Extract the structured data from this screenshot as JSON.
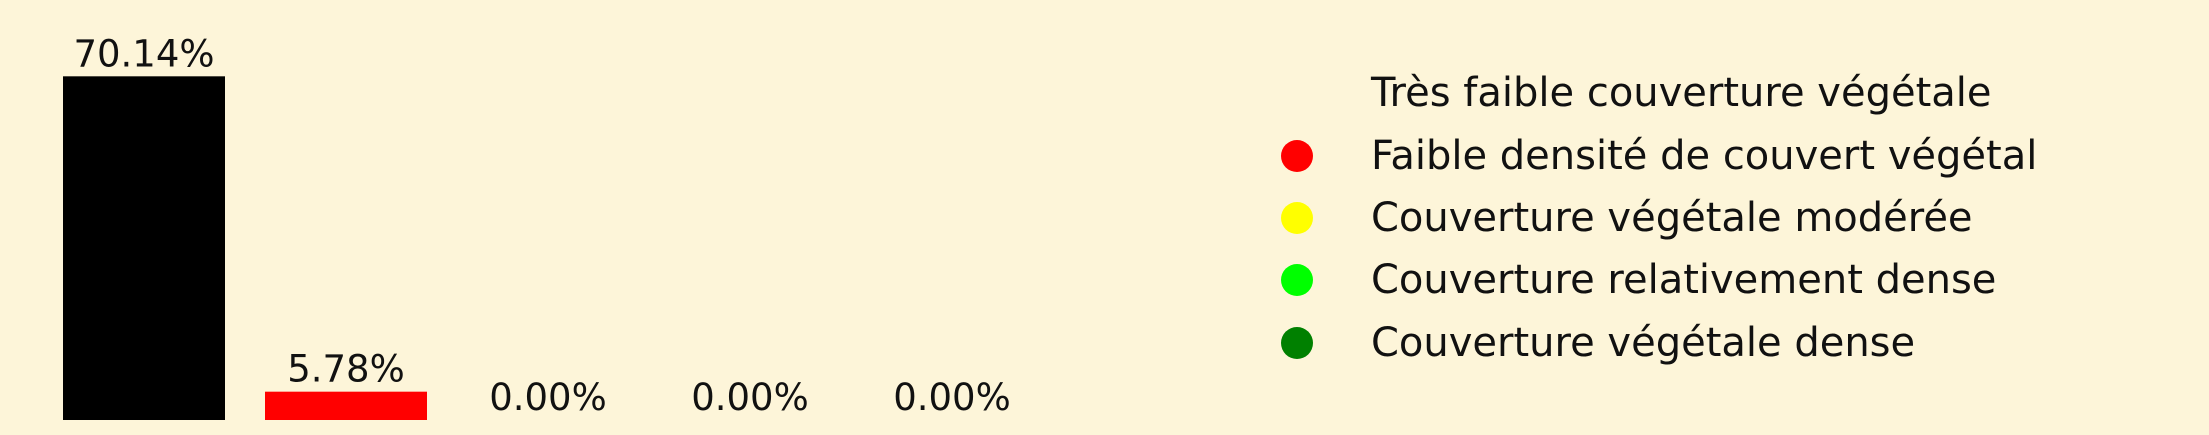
{
  "chart_data": {
    "type": "bar",
    "categories": [
      "Très faible couverture végétale",
      "Faible densité de couvert végétal",
      "Couverture végétale modérée",
      "Couverture relativement dense",
      "Couverture végétale dense"
    ],
    "values": [
      70.14,
      5.78,
      0.0,
      0.0,
      0.0
    ],
    "value_labels": [
      "70.14%",
      "5.78%",
      "0.00%",
      "0.00%",
      "0.00%"
    ],
    "colors": [
      "#000000",
      "#ff0000",
      "#ffff00",
      "#00ff00",
      "#008000"
    ],
    "ylim": [
      0,
      80
    ],
    "legend_position": "top-right",
    "grid": false
  }
}
